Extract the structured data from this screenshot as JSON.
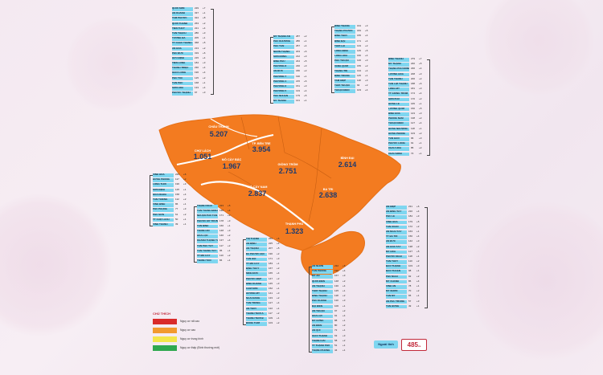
{
  "legend": {
    "title": "CHÚ THÍCH",
    "items": [
      {
        "label": "Nguy cơ rất cao",
        "color": "#d92a2a"
      },
      {
        "label": "Nguy cơ cao",
        "color": "#f29a2e"
      },
      {
        "label": "Nguy cơ trung bình",
        "color": "#f4e64a"
      },
      {
        "label": "Nguy cơ thấp (Bình thường mới)",
        "color": "#2fa84f"
      }
    ]
  },
  "districts": [
    {
      "name": "CHÂU THÀNH",
      "cases": "5.207"
    },
    {
      "name": "TP. BẾN TRE",
      "cases": "3.954"
    },
    {
      "name": "CHỢ LÁCH",
      "cases": "1.051"
    },
    {
      "name": "MỎ CÀY BẮC",
      "cases": "1.967"
    },
    {
      "name": "GIỒNG TRÔM",
      "cases": "2.751"
    },
    {
      "name": "BÌNH ĐẠI",
      "cases": "2.614"
    },
    {
      "name": "MỎ CÀY NAM",
      "cases": "2.837"
    },
    {
      "name": "BA TRI",
      "cases": "2.638"
    },
    {
      "name": "THẠNH PHÚ",
      "cases": "1.323"
    }
  ],
  "outside_province": {
    "label": "Ngoài tỉnh",
    "value": "485",
    "unit": "ca"
  },
  "commune_tables": [
    {
      "rows": [
        {
          "name": "QUỚI SƠN",
          "v1": "229",
          "v2": "+7"
        },
        {
          "name": "AN KHÁNH",
          "v1": "337",
          "v2": "+1"
        },
        {
          "name": "TAM PHƯỚC",
          "v1": "324",
          "v2": "+8"
        },
        {
          "name": "QUỚI THÀNH",
          "v1": "263",
          "v2": "+2"
        },
        {
          "name": "TIỀN THỦY",
          "v1": "221",
          "v2": "+4"
        },
        {
          "name": "TÂN THẠCH",
          "v1": "286",
          "v2": "+3"
        },
        {
          "name": "TƯỜNG ĐA",
          "v1": "205",
          "v2": "+1"
        },
        {
          "name": "TT CHÂU THÀNH",
          "v1": "368",
          "v2": "+5"
        },
        {
          "name": "AN HÓA",
          "v1": "213",
          "v2": "+2"
        },
        {
          "name": "PHÚ ĐỨC",
          "v1": "319",
          "v2": "+6"
        },
        {
          "name": "HỮU ĐỊNH",
          "v1": "215",
          "v2": "+4"
        },
        {
          "name": "TIÊN LONG",
          "v1": "184",
          "v2": "+3"
        },
        {
          "name": "THÀNH TRIỆU",
          "v1": "230",
          "v2": "+4"
        },
        {
          "name": "GIAO LONG",
          "v1": "196",
          "v2": "+4"
        },
        {
          "name": "PHÚ TÚC",
          "v1": "125",
          "v2": "+2"
        },
        {
          "name": "TÂN PHÚ",
          "v1": "168",
          "v2": "+1"
        },
        {
          "name": "SƠN HÒA",
          "v1": "133",
          "v2": "+4"
        },
        {
          "name": "PHƯỚC THẠNH",
          "v1": "97",
          "v2": "+3"
        }
      ]
    },
    {
      "rows": [
        {
          "name": "MỸ THẠNH AN",
          "v1": "287",
          "v2": "+2"
        },
        {
          "name": "PHÚ KHƯƠNG",
          "v1": "286",
          "v2": "+1"
        },
        {
          "name": "PHÚ TÂN",
          "v1": "257",
          "v2": "+4"
        },
        {
          "name": "NHƠN THẠNH",
          "v1": "203",
          "v2": "+6"
        },
        {
          "name": "SƠN ĐÔNG",
          "v1": "212",
          "v2": "+3"
        },
        {
          "name": "BÌNH PHÚ",
          "v1": "244",
          "v2": "+5"
        },
        {
          "name": "PHƯỜNG 8",
          "v1": "236",
          "v2": "+3"
        },
        {
          "name": "AN ĐỨC",
          "v1": "180",
          "v2": "+2"
        },
        {
          "name": "PHƯỜNG 7",
          "v1": "190",
          "v2": "+1"
        },
        {
          "name": "PHƯỜNG 4",
          "v1": "215",
          "v2": "+6"
        },
        {
          "name": "PHƯỜNG 6",
          "v1": "151",
          "v2": "+3"
        },
        {
          "name": "PHƯỜNG 5",
          "v1": "133",
          "v2": "+4"
        },
        {
          "name": "PHÚ NHUẬN",
          "v1": "179",
          "v2": "+5"
        },
        {
          "name": "MỸ THÀNH",
          "v1": "141",
          "v2": "+1"
        }
      ]
    },
    {
      "rows": [
        {
          "name": "BÌNH THẮNG",
          "v1": "164",
          "v2": "+3"
        },
        {
          "name": "THẠNH PHƯỚC",
          "v1": "184",
          "v2": "+5"
        },
        {
          "name": "BÌNH THỚI",
          "v1": "155",
          "v2": "+4"
        },
        {
          "name": "BÌNH ĐẠI",
          "v1": "171",
          "v2": "+4"
        },
        {
          "name": "THỚI LAI",
          "v1": "133",
          "v2": "+2"
        },
        {
          "name": "LONG ĐỊNH",
          "v1": "145",
          "v2": "+5"
        },
        {
          "name": "LONG HÒA",
          "v1": "160",
          "v2": "+4"
        },
        {
          "name": "PHÚ THUẬN",
          "v1": "126",
          "v2": "+3"
        },
        {
          "name": "VANG QUỚI",
          "v1": "155",
          "v2": "+2"
        },
        {
          "name": "THẠNH TRỊ",
          "v1": "134",
          "v2": "+4"
        },
        {
          "name": "ĐỊNH TRUNG",
          "v1": "145",
          "v2": "+1"
        },
        {
          "name": "TAM HIỆP",
          "v1": "118",
          "v2": "+3"
        },
        {
          "name": "THỚI THUẬN",
          "v1": "92",
          "v2": "+2"
        },
        {
          "name": "THUẬN ĐIỀN",
          "v1": "103",
          "v2": "+4"
        }
      ]
    },
    {
      "rows": [
        {
          "name": "VĨNH HÒA",
          "v1": "226",
          "v2": "+6"
        },
        {
          "name": "HƯNG PHONG",
          "v1": "117",
          "v2": "+2"
        },
        {
          "name": "LONG THỚI",
          "v1": "196",
          "v2": "+3"
        },
        {
          "name": "SƠN ĐỊNH",
          "v1": "125",
          "v2": "+1"
        },
        {
          "name": "HÒA NGHĨA",
          "v1": "158",
          "v2": "+4"
        },
        {
          "name": "TÂN THIỀNG",
          "v1": "112",
          "v2": "+2"
        },
        {
          "name": "VĨNH BÌNH",
          "v1": "86",
          "v2": "+1"
        },
        {
          "name": "PHÚ PHỤNG",
          "v1": "77",
          "v2": "+3"
        },
        {
          "name": "PHÚ SƠN",
          "v1": "61",
          "v2": "+2"
        },
        {
          "name": "TT CHỢ LÁCH",
          "v1": "50",
          "v2": "+1"
        },
        {
          "name": "VĨNH THÀNH",
          "v1": "39",
          "v2": "+1"
        }
      ]
    },
    {
      "rows": [
        {
          "name": "THẠNH NGÃI",
          "v1": "223",
          "v2": "+5"
        },
        {
          "name": "TÂN THÀNH BÌNH",
          "v1": "196",
          "v2": "+4"
        },
        {
          "name": "NHUẬN PHÚ TÂN",
          "v1": "171",
          "v2": "+2"
        },
        {
          "name": "PHƯỚC MỸ TRUNG",
          "v1": "178",
          "v2": "+3"
        },
        {
          "name": "TÂN BÌNH",
          "v1": "160",
          "v2": "+1"
        },
        {
          "name": "THÀNH AN",
          "v1": "148",
          "v2": "+3"
        },
        {
          "name": "HÒA LỘC",
          "v1": "140",
          "v2": "+2"
        },
        {
          "name": "KHÁNH THẠNH TÂN",
          "v1": "137",
          "v2": "+4"
        },
        {
          "name": "TÂN PHÚ TÂY",
          "v1": "117",
          "v2": "+2"
        },
        {
          "name": "TÂN THANH TÂY",
          "v1": "95",
          "v2": "+1"
        },
        {
          "name": "TT MỎ CÀY",
          "v1": "110",
          "v2": "+2"
        },
        {
          "name": "THANH TÂN",
          "v1": "84",
          "v2": "+1"
        }
      ]
    },
    {
      "rows": [
        {
          "name": "THỊ THẠNH",
          "v1": "255",
          "v2": "+6"
        },
        {
          "name": "AN ĐỊNH",
          "v1": "225",
          "v2": "+4"
        },
        {
          "name": "AN THẠNH",
          "v1": "207",
          "v2": "+5"
        },
        {
          "name": "ĐA PHƯỚC HỘI",
          "v1": "190",
          "v2": "+2"
        },
        {
          "name": "TÂN HỘI",
          "v1": "171",
          "v2": "+3"
        },
        {
          "name": "TT MỎ CÀY",
          "v1": "183",
          "v2": "+1"
        },
        {
          "name": "ĐỊNH THỦY",
          "v1": "167",
          "v2": "+2"
        },
        {
          "name": "MINH ĐỨC",
          "v1": "165",
          "v2": "+4"
        },
        {
          "name": "PHƯỚC HIỆP",
          "v1": "147",
          "v2": "+2"
        },
        {
          "name": "BÌNH KHÁNH",
          "v1": "145",
          "v2": "+3"
        },
        {
          "name": "CẨM SƠN",
          "v1": "152",
          "v2": "+1"
        },
        {
          "name": "HƯƠNG MỸ",
          "v1": "141",
          "v2": "+3"
        },
        {
          "name": "NGÃI ĐĂNG",
          "v1": "133",
          "v2": "+2"
        },
        {
          "name": "TÂN TRUNG",
          "v1": "127",
          "v2": "+4"
        },
        {
          "name": "AN THỚI",
          "v1": "122",
          "v2": "+1"
        },
        {
          "name": "THÀNH THỚI A",
          "v1": "117",
          "v2": "+2"
        },
        {
          "name": "THÀNH THỚI B",
          "v1": "109",
          "v2": "+1"
        },
        {
          "name": "ĐỒNG THỚI",
          "v1": "103",
          "v2": "+2"
        }
      ]
    },
    {
      "rows": [
        {
          "name": "BÌNH THÀNH",
          "v1": "279",
          "v2": "+7"
        },
        {
          "name": "MỸ THẠNH",
          "v1": "240",
          "v2": "+5"
        },
        {
          "name": "THẠNH PHÚ ĐÔNG",
          "v1": "236",
          "v2": "+4"
        },
        {
          "name": "LƯƠNG HÒA",
          "v1": "208",
          "v2": "+3"
        },
        {
          "name": "TÂN THANH",
          "v1": "206",
          "v2": "+2"
        },
        {
          "name": "TÂN LỢI THẠNH",
          "v1": "188",
          "v2": "+6"
        },
        {
          "name": "LONG MỸ",
          "v1": "181",
          "v2": "+3"
        },
        {
          "name": "TT GIỒNG TRÔM",
          "v1": "174",
          "v2": "+4"
        },
        {
          "name": "SƠN PHÚ",
          "v1": "170",
          "v2": "+2"
        },
        {
          "name": "HƯNG LỄ",
          "v1": "165",
          "v2": "+1"
        },
        {
          "name": "LƯƠNG QUỚI",
          "v1": "150",
          "v2": "+5"
        },
        {
          "name": "BÌNH HÒA",
          "v1": "143",
          "v2": "+3"
        },
        {
          "name": "PHONG NẪM",
          "v1": "138",
          "v2": "+2"
        },
        {
          "name": "THUẬN ĐIỀN",
          "v1": "127",
          "v2": "+4"
        },
        {
          "name": "HƯNG NHƯỢNG",
          "v1": "118",
          "v2": "+1"
        },
        {
          "name": "HƯNG PHONG",
          "v1": "103",
          "v2": "+2"
        },
        {
          "name": "TÂN HÀO",
          "v1": "96",
          "v2": "+3"
        },
        {
          "name": "PHƯỚC LONG",
          "v1": "91",
          "v2": "+1"
        },
        {
          "name": "CHÂU HÒA",
          "v1": "85",
          "v2": "+2"
        },
        {
          "name": "CHÂU BÌNH",
          "v1": "72",
          "v2": "+1"
        }
      ]
    },
    {
      "rows": [
        {
          "name": "AN HIỆP",
          "v1": "231",
          "v2": "+6"
        },
        {
          "name": "AN BÌNH TÂY",
          "v1": "210",
          "v2": "+4"
        },
        {
          "name": "PHÚ LỄ",
          "v1": "184",
          "v2": "+3"
        },
        {
          "name": "VĨNH HÒA",
          "v1": "179",
          "v2": "+5"
        },
        {
          "name": "TÂN XUÂN",
          "v1": "172",
          "v2": "+2"
        },
        {
          "name": "AN NGÃI TÂY",
          "v1": "163",
          "v2": "+1"
        },
        {
          "name": "TT BA TRI",
          "v1": "150",
          "v2": "+4"
        },
        {
          "name": "AN ĐỨC",
          "v1": "142",
          "v2": "+3"
        },
        {
          "name": "AN HÒA TÂY",
          "v1": "138",
          "v2": "+2"
        },
        {
          "name": "MỸ HÒA",
          "v1": "127",
          "v2": "+5"
        },
        {
          "name": "PHƯỚC NGÃI",
          "v1": "118",
          "v2": "+1"
        },
        {
          "name": "TÂN THỦY",
          "v1": "110",
          "v2": "+2"
        },
        {
          "name": "BẢO THẠNH",
          "v1": "103",
          "v2": "+3"
        },
        {
          "name": "BẢO THUẬN",
          "v1": "98",
          "v2": "+1"
        },
        {
          "name": "PHÚ NGÃI",
          "v1": "92",
          "v2": "+2"
        },
        {
          "name": "MỸ CHÁNH",
          "v1": "86",
          "v2": "+4"
        },
        {
          "name": "VĨNH AN",
          "v1": "78",
          "v2": "+1"
        },
        {
          "name": "MỸ NHƠN",
          "v1": "70",
          "v2": "+2"
        },
        {
          "name": "TÂN MỸ",
          "v1": "65",
          "v2": "+1"
        },
        {
          "name": "AN PHÚ TRUNG",
          "v1": "57",
          "v2": "+3"
        },
        {
          "name": "TÂN HƯNG",
          "v1": "49",
          "v2": "+1"
        }
      ]
    },
    {
      "rows": [
        {
          "name": "AN NHƠN",
          "v1": "232",
          "v2": "+5"
        },
        {
          "name": "TÂN PHONG",
          "v1": "190",
          "v2": "+4"
        },
        {
          "name": "MỸ AN",
          "v1": "167",
          "v2": "+3"
        },
        {
          "name": "QUỚI ĐIỀN",
          "v1": "148",
          "v2": "+2"
        },
        {
          "name": "AN THẠNH",
          "v1": "130",
          "v2": "+4"
        },
        {
          "name": "THỚI THẠNH",
          "v1": "125",
          "v2": "+1"
        },
        {
          "name": "BÌNH THẠNH",
          "v1": "118",
          "v2": "+2"
        },
        {
          "name": "PHÚ KHÁNH",
          "v1": "110",
          "v2": "+3"
        },
        {
          "name": "ĐẠI ĐIỀN",
          "v1": "106",
          "v2": "+1"
        },
        {
          "name": "AN THUẬN",
          "v1": "97",
          "v2": "+2"
        },
        {
          "name": "HÒA LỢI",
          "v1": "91",
          "v2": "+4"
        },
        {
          "name": "MỸ HƯNG",
          "v1": "88",
          "v2": "+1"
        },
        {
          "name": "AN ĐIỀN",
          "v1": "80",
          "v2": "+2"
        },
        {
          "name": "AN QUI",
          "v1": "72",
          "v2": "+1"
        },
        {
          "name": "GIAO THẠNH",
          "v1": "63",
          "v2": "+3"
        },
        {
          "name": "THẠNH HẢI",
          "v1": "58",
          "v2": "+2"
        },
        {
          "name": "TT THẠNH PHÚ",
          "v1": "51",
          "v2": "+1"
        },
        {
          "name": "THẠNH PHONG",
          "v1": "44",
          "v2": "+1"
        }
      ]
    }
  ]
}
